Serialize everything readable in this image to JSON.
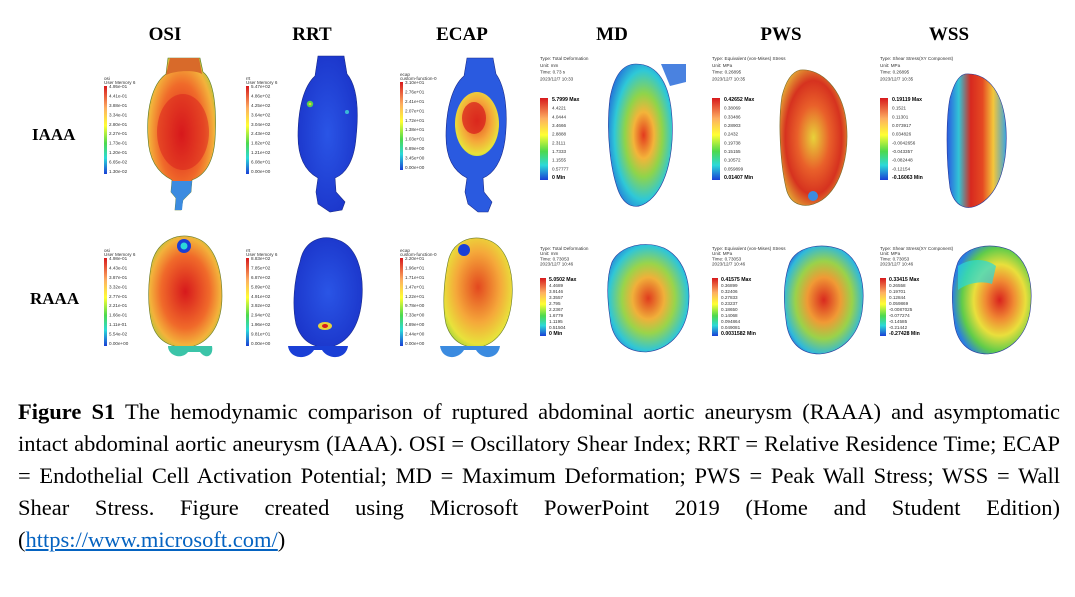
{
  "figure": {
    "columns": [
      "OSI",
      "RRT",
      "ECAP",
      "MD",
      "PWS",
      "WSS"
    ],
    "rows": [
      "IAAA",
      "RAAA"
    ],
    "legends": {
      "IAAA": {
        "MD": {
          "type": "Type: Total Deformation",
          "unit": "Unit: mm",
          "time": "Time: 0.73 s",
          "date": "2023/12/7 10:33",
          "values": [
            "5.7999 Max",
            "4.4221",
            "4.0444",
            "3.4666",
            "2.8888",
            "2.3111",
            "1.7333",
            "1.1555",
            "0.57777",
            "0 Min"
          ]
        },
        "PWS": {
          "type": "Type: Equivalent (von-Mises) Stress",
          "unit": "Unit: MPa",
          "time": "Time: 0.26895",
          "date": "2023/12/7 10:35",
          "values": [
            "0.42652 Max",
            "0.38069",
            "0.33486",
            "0.28903",
            "0.2432",
            "0.19738",
            "0.15155",
            "0.10572",
            "0.059899",
            "0.01407 Min"
          ]
        },
        "WSS": {
          "type": "Type: Shear Stress(XY Component)",
          "unit": "Unit: MPa",
          "time": "Time: 0.26895",
          "date": "2023/12/7 10:35",
          "values": [
            "0.19119 Max",
            "0.1521",
            "0.11301",
            "0.073917",
            "0.034826",
            "-0.0042656",
            "-0.043357",
            "-0.082448",
            "-0.12154",
            "-0.16063 Min"
          ]
        }
      },
      "RAAA": {
        "MD": {
          "type": "Type: Total Deformation",
          "unit": "Unit: mm",
          "time": "Time: 0.73053",
          "date": "2023/12/7 10:46",
          "values": [
            "5.0502 Max",
            "4.4689",
            "3.9146",
            "3.3557",
            "2.795",
            "2.2367",
            "1.6779",
            "1.1195",
            "0.51504",
            "0 Min"
          ]
        },
        "PWS": {
          "type": "Type: Equivalent (von-Mises) Stress",
          "unit": "Unit: MPa",
          "time": "Time: 0.73053",
          "date": "2023/12/7 10:46",
          "values": [
            "0.41575 Max",
            "0.36899",
            "0.32406",
            "0.27833",
            "0.23237",
            "0.18650",
            "0.14068",
            "0.094864",
            "0.049081",
            "0.0031582 Min"
          ]
        },
        "WSS": {
          "type": "Type: Shear Stress(XY Component)",
          "unit": "Unit: MPa",
          "time": "Time: 0.73053",
          "date": "2023/12/7 10:46",
          "values": [
            "0.33415 Max",
            "0.26558",
            "0.19701",
            "0.12844",
            "0.059869",
            "-0.0087025",
            "-0.077274",
            "-0.14585",
            "-0.21442",
            "-0.27428 Min"
          ]
        }
      }
    },
    "cfd_legends": {
      "IAAA": {
        "OSI": {
          "name": "osi",
          "quantity": "User Memory 6",
          "values": [
            "4.95e-01",
            "4.41e-01",
            "3.88e-01",
            "3.34e-01",
            "2.80e-01",
            "2.27e-01",
            "1.73e-01",
            "1.20e-01",
            "6.65e-02",
            "1.30e-02"
          ]
        },
        "RRT": {
          "name": "rrt",
          "quantity": "User Memory 6",
          "values": [
            "5.47e+02",
            "4.86e+02",
            "4.25e+02",
            "3.64e+02",
            "3.04e+02",
            "2.43e+02",
            "1.82e+02",
            "1.21e+02",
            "6.08e+01",
            "0.00e+00"
          ]
        },
        "ECAP": {
          "name": "ecap",
          "quantity": "custom-function-0",
          "values": [
            "3.10e+01",
            "2.76e+01",
            "2.41e+01",
            "2.07e+01",
            "1.72e+01",
            "1.38e+01",
            "1.03e+01",
            "6.89e+00",
            "3.45e+00",
            "0.00e+00"
          ]
        }
      },
      "RAAA": {
        "OSI": {
          "name": "osi",
          "quantity": "User Memory 6",
          "values": [
            "4.98e-01",
            "4.43e-01",
            "3.87e-01",
            "3.32e-01",
            "2.77e-01",
            "2.21e-01",
            "1.66e-01",
            "1.11e-01",
            "5.54e-02",
            "0.00e+00"
          ]
        },
        "RRT": {
          "name": "rrt",
          "quantity": "User Memory 6",
          "values": [
            "8.83e+02",
            "7.85e+02",
            "6.87e+02",
            "5.89e+02",
            "4.91e+02",
            "3.92e+02",
            "2.94e+02",
            "1.96e+02",
            "9.81e+01",
            "0.00e+00"
          ]
        },
        "ECAP": {
          "name": "ecap",
          "quantity": "custom-function-0",
          "values": [
            "2.20e+01",
            "1.96e+01",
            "1.71e+01",
            "1.47e+01",
            "1.22e+01",
            "9.78e+00",
            "7.33e+00",
            "4.89e+00",
            "2.44e+00",
            "0.00e+00"
          ]
        }
      }
    },
    "colors": {
      "red": "#d7191c",
      "orange": "#fdae61",
      "yellow": "#ffff33",
      "green": "#4dd94d",
      "cyan": "#2bd9d9",
      "blue": "#1a3fd6"
    }
  },
  "caption": {
    "label": "Figure S1",
    "text": " The hemodynamic comparison of ruptured abdominal aortic aneurysm (RAAA) and asymptomatic intact abdominal aortic aneurysm (IAAA). OSI = Oscillatory Shear Index; RRT = Relative Residence Time; ECAP = Endothelial Cell Activation Potential; MD = Maximum Deformation; PWS = Peak Wall Stress; WSS = Wall Shear Stress. Figure created using Microsoft PowerPoint 2019 (Home and Student Edition) (",
    "link": "https://www.microsoft.com/",
    "end": ")"
  }
}
